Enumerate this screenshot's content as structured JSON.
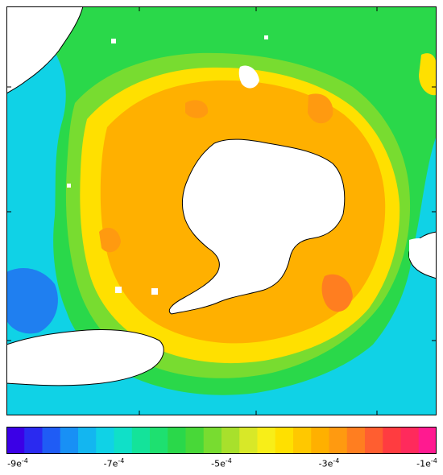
{
  "colorbar": {
    "min": -0.0009,
    "max": -0.0001,
    "colors": [
      "#3b00e6",
      "#2a2af0",
      "#1f5cf5",
      "#1890f5",
      "#13b6f0",
      "#10d2e6",
      "#10e0c8",
      "#14e39a",
      "#1ee070",
      "#2ad84a",
      "#48d838",
      "#78dc30",
      "#a8e02c",
      "#d8e828",
      "#f8ee18",
      "#ffe000",
      "#ffc800",
      "#ffb000",
      "#ff9a10",
      "#ff7e20",
      "#ff5e30",
      "#ff3c40",
      "#ff2a5c",
      "#ff1a90"
    ],
    "tick_labels": [
      {
        "base": "-9e",
        "exp": "-4",
        "value": -0.0009
      },
      {
        "base": "-7e",
        "exp": "-4",
        "value": -0.0007
      },
      {
        "base": "-5e",
        "exp": "-4",
        "value": -0.0005
      },
      {
        "base": "-3e",
        "exp": "-4",
        "value": -0.0003
      },
      {
        "base": "-1e",
        "exp": "-4",
        "value": -0.0001
      }
    ]
  },
  "palette": {
    "outer_ocean": "#10d2e6",
    "mid_green": "#2ad84a",
    "yellow": "#ffe000",
    "orange": "#ffb000",
    "dark_orange": "#ff9a10",
    "land": "#ffffff",
    "coast": "#000000",
    "blue_patch": "#1f7ff0",
    "red_patch": "#ff5e30"
  }
}
